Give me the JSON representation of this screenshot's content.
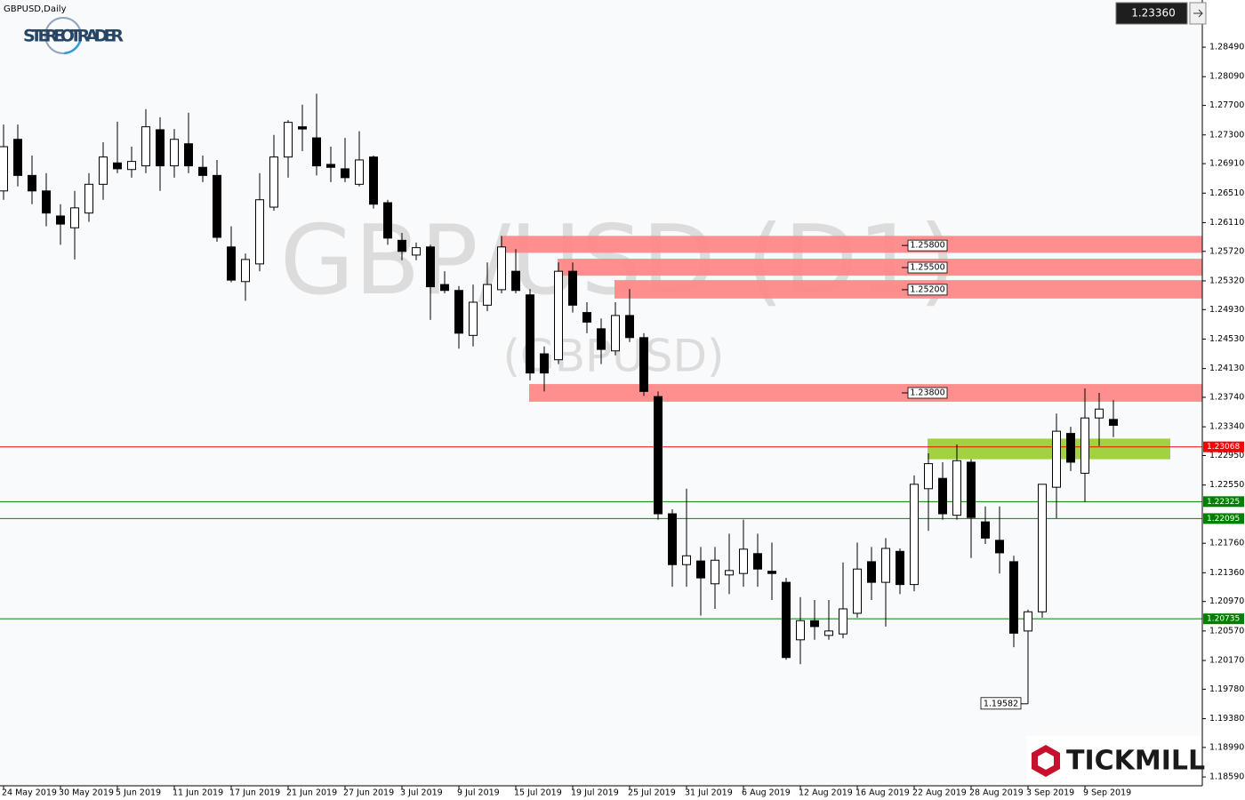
{
  "header": {
    "symbol": "GBPUSD,Daily"
  },
  "logos": {
    "stereotrader": "STEREOTRADER",
    "tickmill": "TICKMILL"
  },
  "chart_data": {
    "type": "candlestick",
    "watermark": "GBP/USD (D1)",
    "watermark_sub": "(GBPUSD)",
    "categories": [
      "24 May 2019",
      null,
      null,
      null,
      "30 May 2019",
      null,
      null,
      null,
      "5 Jun 2019",
      null,
      null,
      null,
      "11 Jun 2019",
      null,
      null,
      null,
      "17 Jun 2019",
      null,
      null,
      null,
      "21 Jun 2019",
      null,
      null,
      null,
      "27 Jun 2019",
      null,
      null,
      null,
      "3 Jul 2019",
      null,
      null,
      null,
      "9 Jul 2019",
      null,
      null,
      null,
      "15 Jul 2019",
      null,
      null,
      null,
      "19 Jul 2019",
      null,
      null,
      null,
      "25 Jul 2019",
      null,
      null,
      null,
      "31 Jul 2019",
      null,
      null,
      null,
      "6 Aug 2019",
      null,
      null,
      null,
      "12 Aug 2019",
      null,
      null,
      null,
      "16 Aug 2019",
      null,
      null,
      null,
      "22 Aug 2019",
      null,
      null,
      null,
      "28 Aug 2019",
      null,
      null,
      null,
      "3 Sep 2019",
      null,
      null,
      null,
      "9 Sep 2019",
      null,
      null
    ],
    "open": [
      1.2654,
      1.2724,
      1.2675,
      1.2654,
      1.262,
      1.2604,
      1.2624,
      1.2663,
      1.2692,
      1.2683,
      1.2688,
      1.2737,
      1.2688,
      1.2718,
      1.2686,
      1.2675,
      1.2578,
      1.2531,
      1.2555,
      1.2632,
      1.27,
      1.2741,
      1.2726,
      1.269,
      1.2684,
      1.2663,
      1.27,
      1.2638,
      1.2587,
      1.2567,
      1.2578,
      1.2527,
      1.2519,
      1.2458,
      1.2499,
      1.252,
      1.2545,
      1.2513,
      1.2433,
      1.2425,
      1.2545,
      1.2489,
      1.2467,
      1.2437,
      1.2485,
      1.2455,
      1.2375,
      1.2216,
      1.2147,
      1.2152,
      1.2121,
      1.2133,
      1.2135,
      1.2162,
      1.2138,
      1.2123,
      1.2045,
      1.2071,
      1.2051,
      1.2053,
      1.2081,
      1.2151,
      1.2123,
      1.2165,
      1.212,
      1.225,
      1.2264,
      1.2214,
      1.2286,
      1.2205,
      1.218,
      1.2151,
      1.2057,
      1.2083,
      1.2252,
      1.2325,
      1.2271,
      1.2346,
      1.2344
    ],
    "high": [
      1.2744,
      1.2744,
      1.2702,
      1.2678,
      1.2636,
      1.2654,
      1.2678,
      1.272,
      1.2748,
      1.2714,
      1.2765,
      1.2754,
      1.2738,
      1.276,
      1.2702,
      1.2696,
      1.2606,
      1.2569,
      1.2678,
      1.273,
      1.275,
      1.2771,
      1.2786,
      1.2714,
      1.2726,
      1.2735,
      1.2702,
      1.2642,
      1.2597,
      1.2584,
      1.2581,
      1.2545,
      1.2525,
      1.2527,
      1.2557,
      1.2593,
      1.2575,
      1.2521,
      1.2443,
      1.2557,
      1.2557,
      1.2503,
      1.2481,
      1.2503,
      1.2521,
      1.2461,
      1.2382,
      1.2222,
      1.225,
      1.2171,
      1.2171,
      1.2189,
      1.2208,
      1.2189,
      1.2177,
      1.2129,
      1.2103,
      1.2099,
      1.2099,
      1.215,
      1.2177,
      1.2171,
      1.2183,
      1.2169,
      1.2268,
      1.2298,
      1.2286,
      1.231,
      1.229,
      1.2226,
      1.2226,
      1.2159,
      1.2086,
      1.2256,
      1.2352,
      1.2334,
      1.2386,
      1.238,
      1.237
    ],
    "low": [
      1.2642,
      1.266,
      1.2636,
      1.2606,
      1.2581,
      1.2561,
      1.2612,
      1.2642,
      1.2678,
      1.2672,
      1.2678,
      1.2654,
      1.2672,
      1.2678,
      1.2666,
      1.2585,
      1.253,
      1.2505,
      1.2545,
      1.2627,
      1.2672,
      1.2708,
      1.2675,
      1.2666,
      1.2666,
      1.266,
      1.263,
      1.2581,
      1.256,
      1.256,
      1.2479,
      1.2515,
      1.244,
      1.2443,
      1.2491,
      1.2515,
      1.2515,
      1.2397,
      1.2382,
      1.2419,
      1.2489,
      1.2461,
      1.2419,
      1.2431,
      1.2449,
      1.2376,
      1.2208,
      1.2117,
      1.2117,
      1.2078,
      1.2087,
      1.2107,
      1.2117,
      1.2117,
      1.2099,
      1.2018,
      1.2012,
      1.2045,
      1.2045,
      1.2047,
      1.2075,
      1.2099,
      1.2063,
      1.2107,
      1.2111,
      1.2193,
      1.2208,
      1.2208,
      1.2156,
      1.2175,
      1.2135,
      1.2035,
      1.19582,
      1.2075,
      1.221,
      1.2274,
      1.2232,
      1.2308,
      1.232
    ],
    "close": [
      1.2714,
      1.2675,
      1.2654,
      1.2624,
      1.2609,
      1.2631,
      1.2663,
      1.27,
      1.2684,
      1.2694,
      1.2741,
      1.2688,
      1.2724,
      1.2688,
      1.2675,
      1.2591,
      1.2533,
      1.2561,
      1.2642,
      1.27,
      1.2747,
      1.2738,
      1.2688,
      1.2686,
      1.2672,
      1.2696,
      1.2636,
      1.259,
      1.2572,
      1.2577,
      1.2524,
      1.2519,
      1.2461,
      1.2503,
      1.2527,
      1.2578,
      1.2519,
      1.2407,
      1.2407,
      1.2545,
      1.2499,
      1.2476,
      1.2439,
      1.2485,
      1.2455,
      1.2382,
      1.2216,
      1.2147,
      1.2159,
      1.2129,
      1.2153,
      1.2139,
      1.2168,
      1.2141,
      1.2135,
      1.2021,
      1.2071,
      1.2063,
      1.2057,
      1.2087,
      1.2141,
      1.2123,
      1.2169,
      1.212,
      1.2256,
      1.2284,
      1.2216,
      1.2288,
      1.2211,
      1.2183,
      1.2163,
      1.2054,
      1.2083,
      1.2256,
      1.2328,
      1.2286,
      1.2346,
      1.2358,
      1.2336
    ],
    "up_color": "#ffffff",
    "down_color": "#000000",
    "ylim": [
      1.1847,
      1.2913
    ],
    "yticks": [
      {
        "value": 1.2849,
        "label": "1.28490"
      },
      {
        "value": 1.2809,
        "label": "1.28090"
      },
      {
        "value": 1.277,
        "label": "1.27700"
      },
      {
        "value": 1.273,
        "label": "1.27300"
      },
      {
        "value": 1.2691,
        "label": "1.26910"
      },
      {
        "value": 1.2651,
        "label": "1.26510"
      },
      {
        "value": 1.2611,
        "label": "1.26110"
      },
      {
        "value": 1.2572,
        "label": "1.25720"
      },
      {
        "value": 1.2532,
        "label": "1.25320"
      },
      {
        "value": 1.2493,
        "label": "1.24930"
      },
      {
        "value": 1.2453,
        "label": "1.24530"
      },
      {
        "value": 1.2413,
        "label": "1.24130"
      },
      {
        "value": 1.2374,
        "label": "1.23740"
      },
      {
        "value": 1.2334,
        "label": "1.23340"
      },
      {
        "value": 1.2295,
        "label": "1.22950"
      },
      {
        "value": 1.2255,
        "label": "1.22550"
      },
      {
        "value": 1.2176,
        "label": "1.21760"
      },
      {
        "value": 1.2136,
        "label": "1.21360"
      },
      {
        "value": 1.2097,
        "label": "1.20970"
      },
      {
        "value": 1.2057,
        "label": "1.20570"
      },
      {
        "value": 1.2017,
        "label": "1.20170"
      },
      {
        "value": 1.1978,
        "label": "1.19780"
      },
      {
        "value": 1.1938,
        "label": "1.19380"
      },
      {
        "value": 1.1899,
        "label": "1.18990"
      },
      {
        "value": 1.1859,
        "label": "1.18590"
      }
    ],
    "current_price": {
      "value": 1.2336,
      "label": "1.23360"
    },
    "levels": [
      {
        "value": 1.23068,
        "label": "1.23068",
        "color": "#ff0000"
      },
      {
        "value": 1.22325,
        "label": "1.22325",
        "color": "#008000"
      },
      {
        "value": 1.22095,
        "label": "1.22095",
        "color": "#008000"
      },
      {
        "value": 1.20735,
        "label": "1.20735",
        "color": "#008000"
      }
    ],
    "zones": [
      {
        "value": 1.258,
        "label": "1.25800",
        "top": 1.2593,
        "bottom": 1.257,
        "start": 35,
        "color": "#ff8585"
      },
      {
        "value": 1.255,
        "label": "1.25500",
        "top": 1.2562,
        "bottom": 1.2539,
        "start": 39,
        "color": "#ff8585"
      },
      {
        "value": 1.252,
        "label": "1.25200",
        "top": 1.2533,
        "bottom": 1.2508,
        "start": 43,
        "color": "#ff8585"
      },
      {
        "value": 1.238,
        "label": "1.23800",
        "top": 1.2392,
        "bottom": 1.2368,
        "start": 37,
        "color": "#ff8585"
      },
      {
        "top": 1.2318,
        "bottom": 1.229,
        "start": 65,
        "end": 82,
        "color": "#9acd32"
      }
    ],
    "low_label": {
      "value": 1.19582,
      "label": "1.19582",
      "index": 72
    }
  }
}
